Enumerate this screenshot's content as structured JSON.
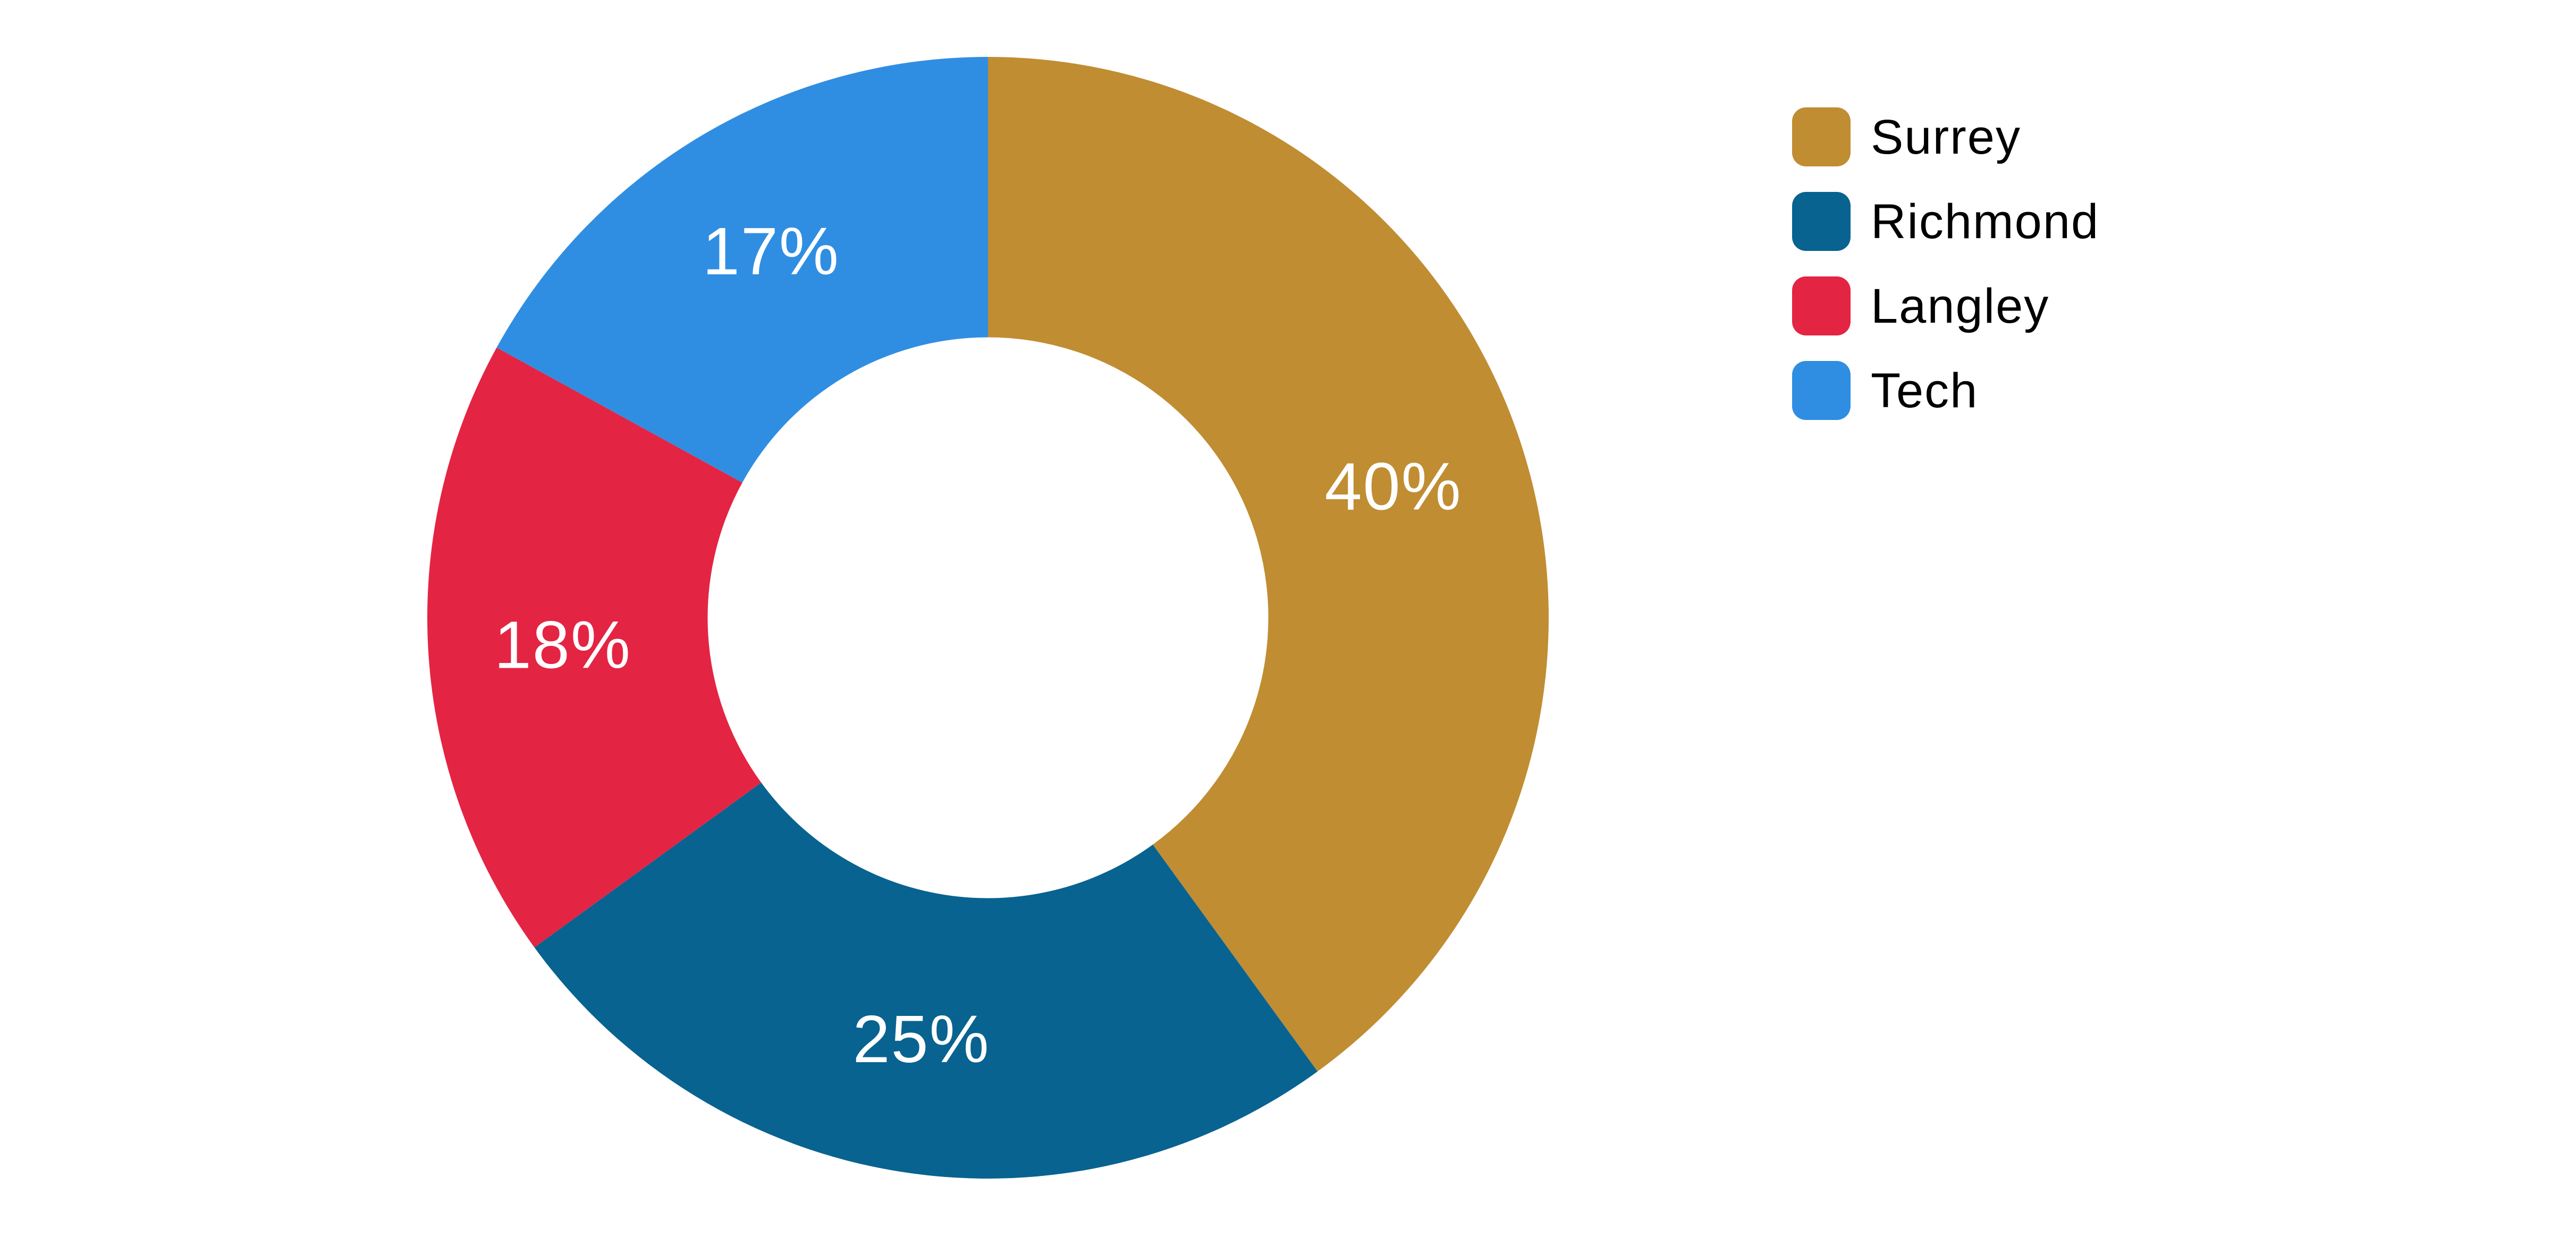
{
  "page": {
    "background_color": "#ffffff"
  },
  "chart_data": {
    "type": "pie",
    "subtype": "donut",
    "title": "",
    "categories": [
      "Surrey",
      "Richmond",
      "Langley",
      "Tech"
    ],
    "values": [
      40,
      25,
      18,
      17
    ],
    "series": [
      {
        "name": "Surrey",
        "value": 40,
        "label": "40%",
        "color": "#C08D33"
      },
      {
        "name": "Richmond",
        "value": 25,
        "label": "25%",
        "color": "#086390"
      },
      {
        "name": "Langley",
        "value": 18,
        "label": "18%",
        "color": "#E42443"
      },
      {
        "name": "Tech",
        "value": 17,
        "label": "17%",
        "color": "#2F8EE2"
      }
    ],
    "data_label_color": "#ffffff",
    "legend": {
      "position": "right",
      "text_color": "#000000",
      "items": [
        "Surrey",
        "Richmond",
        "Langley",
        "Tech"
      ]
    },
    "layout": {
      "start_angle_deg": 0,
      "direction": "clockwise",
      "donut_hole_ratio": 0.5,
      "label_radius_ratio": 0.76,
      "gridlines": false,
      "background": "#ffffff"
    }
  }
}
